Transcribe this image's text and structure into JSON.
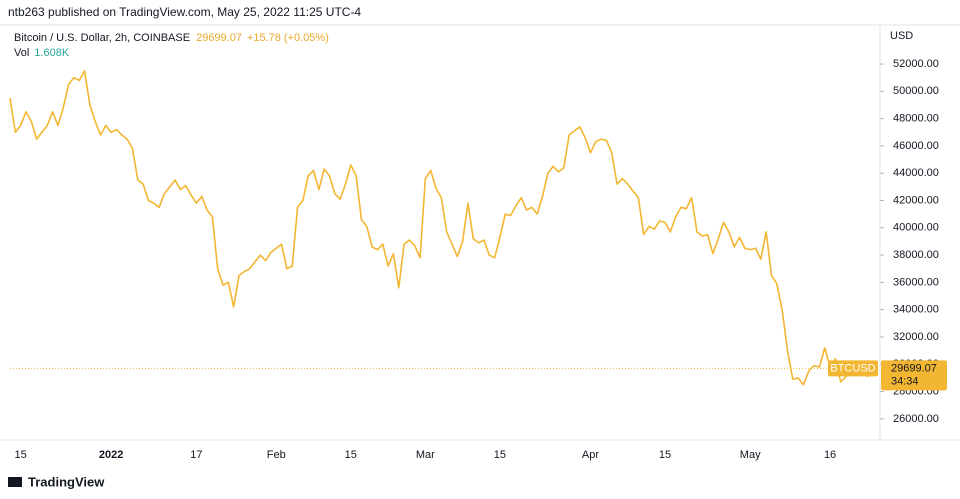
{
  "chart_data": {
    "type": "line",
    "published": "ntb263 published on TradingView.com, May 25, 2022 11:25 UTC-4",
    "title": "Bitcoin / U.S. Dollar, 2h, COINBASE",
    "last_price": 29699.07,
    "change": "+15.78",
    "change_pct": "(+0.05%)",
    "vol_label": "Vol",
    "vol_value": "1.608K",
    "unit": "USD",
    "symbol": "BTCUSD",
    "countdown": "34:34",
    "brand": "TradingView",
    "color": "#f2b632",
    "ylim": [
      24450,
      54860
    ],
    "yticks": [
      {
        "value": 26000,
        "label": "26000.00"
      },
      {
        "value": 28000,
        "label": "28000.00"
      },
      {
        "value": 30000,
        "label": "30000.00"
      },
      {
        "value": 32000,
        "label": "32000.00"
      },
      {
        "value": 34000,
        "label": "34000.00"
      },
      {
        "value": 36000,
        "label": "36000.00"
      },
      {
        "value": 38000,
        "label": "38000.00"
      },
      {
        "value": 40000,
        "label": "40000.00"
      },
      {
        "value": 42000,
        "label": "42000.00"
      },
      {
        "value": 44000,
        "label": "44000.00"
      },
      {
        "value": 46000,
        "label": "46000.00"
      },
      {
        "value": 48000,
        "label": "48000.00"
      },
      {
        "value": 50000,
        "label": "50000.00"
      },
      {
        "value": 52000,
        "label": "52000.00"
      }
    ],
    "categories": [
      null,
      null,
      "15",
      null,
      null,
      null,
      null,
      null,
      null,
      null,
      null,
      null,
      null,
      null,
      null,
      null,
      null,
      null,
      null,
      "2022",
      null,
      null,
      null,
      null,
      null,
      null,
      null,
      null,
      null,
      null,
      null,
      null,
      null,
      null,
      null,
      "17",
      null,
      null,
      null,
      null,
      null,
      null,
      null,
      null,
      null,
      null,
      null,
      null,
      null,
      null,
      "Feb",
      null,
      null,
      null,
      null,
      null,
      null,
      null,
      null,
      null,
      null,
      null,
      null,
      null,
      "15",
      null,
      null,
      null,
      null,
      null,
      null,
      null,
      null,
      null,
      null,
      null,
      null,
      null,
      "Mar",
      null,
      null,
      null,
      null,
      null,
      null,
      null,
      null,
      null,
      null,
      null,
      null,
      null,
      "15",
      null,
      null,
      null,
      null,
      null,
      null,
      null,
      null,
      null,
      null,
      null,
      null,
      null,
      null,
      null,
      null,
      "Apr",
      null,
      null,
      null,
      null,
      null,
      null,
      null,
      null,
      null,
      null,
      null,
      null,
      null,
      "15",
      null,
      null,
      null,
      null,
      null,
      null,
      null,
      null,
      null,
      null,
      null,
      null,
      null,
      null,
      null,
      "May",
      null,
      null,
      null,
      null,
      null,
      null,
      null,
      null,
      null,
      null,
      null,
      null,
      null,
      null,
      "16",
      null,
      null,
      null,
      null,
      null,
      null,
      null,
      null,
      null
    ],
    "values": [
      49500,
      47000,
      47500,
      48500,
      47800,
      46500,
      47000,
      47500,
      48500,
      47500,
      48800,
      50500,
      51000,
      50800,
      51500,
      49000,
      47800,
      46800,
      47500,
      47000,
      47200,
      46800,
      46500,
      45800,
      43500,
      43200,
      42000,
      41800,
      41500,
      42500,
      43000,
      43500,
      42800,
      43100,
      42400,
      41800,
      42300,
      41300,
      40800,
      37000,
      35800,
      36000,
      34200,
      36500,
      36800,
      37000,
      37500,
      38000,
      37600,
      38200,
      38500,
      38800,
      37000,
      37200,
      41500,
      42000,
      43800,
      44200,
      42800,
      44300,
      43800,
      42500,
      42100,
      43200,
      44600,
      43800,
      40600,
      40100,
      38600,
      38400,
      38800,
      37200,
      38100,
      35600,
      38800,
      39100,
      38700,
      37800,
      43600,
      44200,
      42900,
      42200,
      39700,
      38800,
      37900,
      39000,
      41800,
      39200,
      38900,
      39100,
      38000,
      37800,
      39300,
      41000,
      40900,
      41600,
      42200,
      41300,
      41500,
      41000,
      42300,
      44000,
      44500,
      44100,
      44400,
      46800,
      47100,
      47400,
      46600,
      45500,
      46300,
      46500,
      46400,
      45500,
      43200,
      43600,
      43200,
      42700,
      42200,
      39500,
      40100,
      39900,
      40500,
      40400,
      39700,
      40800,
      41500,
      41400,
      42200,
      39700,
      39400,
      39500,
      38100,
      39200,
      40400,
      39700,
      38600,
      39300,
      38500,
      38400,
      38500,
      37700,
      39700,
      36500,
      35900,
      34000,
      31000,
      28900,
      29000,
      28500,
      29500,
      29900,
      29800,
      31200,
      29800,
      30400,
      28700,
      29100,
      29300,
      29400,
      30200,
      29100,
      29600,
      29699.07
    ]
  }
}
